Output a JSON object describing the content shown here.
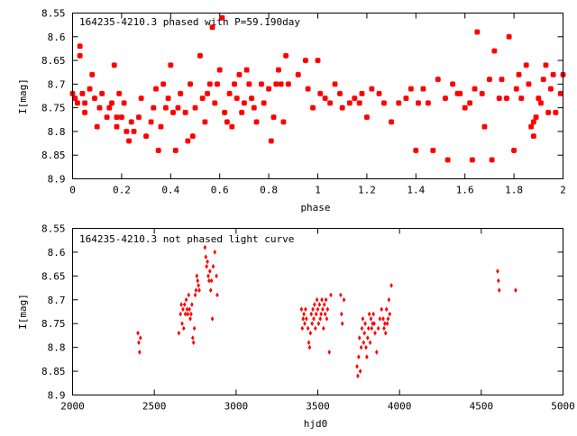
{
  "chart_data": [
    {
      "type": "scatter",
      "title": "164235-4210.3 phased with P=59.190day",
      "xlabel": "phase",
      "ylabel": "I[mag]",
      "xlim": [
        0,
        2
      ],
      "ylim": [
        8.55,
        8.9
      ],
      "y_inverted": true,
      "grid": false,
      "marker_color": "#ff0000",
      "x_ticks": [
        "0",
        "0.2",
        "0.4",
        "0.6",
        "0.8",
        "1",
        "1.2",
        "1.4",
        "1.6",
        "1.8",
        "2"
      ],
      "x_tick_values": [
        0,
        0.2,
        0.4,
        0.6,
        0.8,
        1.0,
        1.2,
        1.4,
        1.6,
        1.8,
        2.0
      ],
      "y_ticks": [
        "8.55",
        "8.6",
        "8.65",
        "8.7",
        "8.75",
        "8.8",
        "8.85",
        "8.9"
      ],
      "y_tick_values": [
        8.55,
        8.6,
        8.65,
        8.7,
        8.75,
        8.8,
        8.85,
        8.9
      ],
      "points": [
        [
          0.0,
          8.72
        ],
        [
          0.01,
          8.73
        ],
        [
          0.02,
          8.74
        ],
        [
          0.03,
          8.62
        ],
        [
          0.03,
          8.64
        ],
        [
          0.04,
          8.72
        ],
        [
          0.05,
          8.74
        ],
        [
          0.05,
          8.76
        ],
        [
          0.07,
          8.71
        ],
        [
          0.08,
          8.68
        ],
        [
          0.09,
          8.73
        ],
        [
          0.1,
          8.79
        ],
        [
          0.11,
          8.75
        ],
        [
          0.12,
          8.72
        ],
        [
          0.14,
          8.77
        ],
        [
          0.15,
          8.75
        ],
        [
          0.16,
          8.74
        ],
        [
          0.17,
          8.66
        ],
        [
          0.18,
          8.77
        ],
        [
          0.18,
          8.79
        ],
        [
          0.19,
          8.72
        ],
        [
          0.2,
          8.77
        ],
        [
          0.21,
          8.74
        ],
        [
          0.22,
          8.8
        ],
        [
          0.23,
          8.82
        ],
        [
          0.24,
          8.78
        ],
        [
          0.25,
          8.8
        ],
        [
          0.27,
          8.77
        ],
        [
          0.28,
          8.73
        ],
        [
          0.3,
          8.81
        ],
        [
          0.32,
          8.78
        ],
        [
          0.33,
          8.75
        ],
        [
          0.34,
          8.71
        ],
        [
          0.35,
          8.84
        ],
        [
          0.36,
          8.79
        ],
        [
          0.37,
          8.7
        ],
        [
          0.38,
          8.75
        ],
        [
          0.39,
          8.73
        ],
        [
          0.4,
          8.66
        ],
        [
          0.41,
          8.76
        ],
        [
          0.42,
          8.84
        ],
        [
          0.43,
          8.75
        ],
        [
          0.44,
          8.72
        ],
        [
          0.46,
          8.76
        ],
        [
          0.47,
          8.82
        ],
        [
          0.48,
          8.7
        ],
        [
          0.49,
          8.81
        ],
        [
          0.5,
          8.75
        ],
        [
          0.52,
          8.64
        ],
        [
          0.53,
          8.73
        ],
        [
          0.54,
          8.78
        ],
        [
          0.55,
          8.72
        ],
        [
          0.56,
          8.7
        ],
        [
          0.57,
          8.58
        ],
        [
          0.58,
          8.74
        ],
        [
          0.59,
          8.7
        ],
        [
          0.6,
          8.67
        ],
        [
          0.61,
          8.56
        ],
        [
          0.62,
          8.76
        ],
        [
          0.63,
          8.78
        ],
        [
          0.64,
          8.72
        ],
        [
          0.65,
          8.79
        ],
        [
          0.66,
          8.7
        ],
        [
          0.67,
          8.73
        ],
        [
          0.68,
          8.68
        ],
        [
          0.69,
          8.76
        ],
        [
          0.7,
          8.74
        ],
        [
          0.71,
          8.67
        ],
        [
          0.72,
          8.7
        ],
        [
          0.73,
          8.73
        ],
        [
          0.74,
          8.75
        ],
        [
          0.75,
          8.78
        ],
        [
          0.77,
          8.7
        ],
        [
          0.78,
          8.74
        ],
        [
          0.8,
          8.71
        ],
        [
          0.81,
          8.82
        ],
        [
          0.82,
          8.77
        ],
        [
          0.83,
          8.7
        ],
        [
          0.84,
          8.67
        ],
        [
          0.85,
          8.7
        ],
        [
          0.86,
          8.78
        ],
        [
          0.87,
          8.64
        ],
        [
          0.88,
          8.7
        ],
        [
          0.92,
          8.68
        ],
        [
          0.95,
          8.65
        ],
        [
          0.96,
          8.71
        ],
        [
          0.98,
          8.75
        ],
        [
          1.0,
          8.65
        ],
        [
          1.01,
          8.72
        ],
        [
          1.03,
          8.73
        ],
        [
          1.05,
          8.74
        ],
        [
          1.07,
          8.7
        ],
        [
          1.09,
          8.72
        ],
        [
          1.1,
          8.75
        ],
        [
          1.13,
          8.74
        ],
        [
          1.15,
          8.73
        ],
        [
          1.17,
          8.74
        ],
        [
          1.18,
          8.72
        ],
        [
          1.2,
          8.77
        ],
        [
          1.22,
          8.71
        ],
        [
          1.25,
          8.72
        ],
        [
          1.27,
          8.74
        ],
        [
          1.3,
          8.78
        ],
        [
          1.33,
          8.74
        ],
        [
          1.36,
          8.73
        ],
        [
          1.38,
          8.71
        ],
        [
          1.4,
          8.84
        ],
        [
          1.41,
          8.74
        ],
        [
          1.43,
          8.71
        ],
        [
          1.45,
          8.74
        ],
        [
          1.47,
          8.84
        ],
        [
          1.49,
          8.69
        ],
        [
          1.52,
          8.73
        ],
        [
          1.53,
          8.86
        ],
        [
          1.55,
          8.7
        ],
        [
          1.57,
          8.72
        ],
        [
          1.58,
          8.72
        ],
        [
          1.6,
          8.75
        ],
        [
          1.62,
          8.74
        ],
        [
          1.63,
          8.86
        ],
        [
          1.64,
          8.71
        ],
        [
          1.65,
          8.59
        ],
        [
          1.67,
          8.72
        ],
        [
          1.68,
          8.79
        ],
        [
          1.7,
          8.69
        ],
        [
          1.71,
          8.86
        ],
        [
          1.72,
          8.63
        ],
        [
          1.74,
          8.73
        ],
        [
          1.75,
          8.69
        ],
        [
          1.77,
          8.73
        ],
        [
          1.78,
          8.6
        ],
        [
          1.8,
          8.84
        ],
        [
          1.81,
          8.71
        ],
        [
          1.82,
          8.68
        ],
        [
          1.83,
          8.73
        ],
        [
          1.85,
          8.66
        ],
        [
          1.86,
          8.7
        ],
        [
          1.87,
          8.79
        ],
        [
          1.88,
          8.81
        ],
        [
          1.88,
          8.78
        ],
        [
          1.89,
          8.77
        ],
        [
          1.9,
          8.73
        ],
        [
          1.91,
          8.74
        ],
        [
          1.92,
          8.69
        ],
        [
          1.93,
          8.66
        ],
        [
          1.94,
          8.76
        ],
        [
          1.95,
          8.71
        ],
        [
          1.96,
          8.68
        ],
        [
          1.97,
          8.76
        ],
        [
          1.99,
          8.72
        ],
        [
          2.0,
          8.68
        ]
      ]
    },
    {
      "type": "scatter",
      "title": "164235-4210.3 not phased light curve",
      "xlabel": "hjd0",
      "ylabel": "I[mag]",
      "xlim": [
        2000,
        5000
      ],
      "ylim": [
        8.55,
        8.9
      ],
      "y_inverted": true,
      "grid": false,
      "marker_color": "#ff0000",
      "x_ticks": [
        "2000",
        "2500",
        "3000",
        "3500",
        "4000",
        "4500",
        "5000"
      ],
      "x_tick_values": [
        2000,
        2500,
        3000,
        3500,
        4000,
        4500,
        5000
      ],
      "y_ticks": [
        "8.55",
        "8.6",
        "8.65",
        "8.7",
        "8.75",
        "8.8",
        "8.85",
        "8.9"
      ],
      "y_tick_values": [
        8.55,
        8.6,
        8.65,
        8.7,
        8.75,
        8.8,
        8.85,
        8.9
      ],
      "points": [
        [
          2400,
          8.77
        ],
        [
          2405,
          8.79
        ],
        [
          2410,
          8.81
        ],
        [
          2415,
          8.78
        ],
        [
          2650,
          8.77
        ],
        [
          2660,
          8.73
        ],
        [
          2665,
          8.71
        ],
        [
          2670,
          8.75
        ],
        [
          2675,
          8.72
        ],
        [
          2680,
          8.76
        ],
        [
          2685,
          8.71
        ],
        [
          2690,
          8.73
        ],
        [
          2695,
          8.7
        ],
        [
          2700,
          8.72
        ],
        [
          2705,
          8.73
        ],
        [
          2710,
          8.69
        ],
        [
          2715,
          8.72
        ],
        [
          2720,
          8.74
        ],
        [
          2725,
          8.73
        ],
        [
          2730,
          8.71
        ],
        [
          2735,
          8.78
        ],
        [
          2740,
          8.79
        ],
        [
          2745,
          8.76
        ],
        [
          2750,
          8.69
        ],
        [
          2755,
          8.68
        ],
        [
          2760,
          8.65
        ],
        [
          2765,
          8.66
        ],
        [
          2770,
          8.67
        ],
        [
          2775,
          8.68
        ],
        [
          2810,
          8.59
        ],
        [
          2815,
          8.61
        ],
        [
          2820,
          8.63
        ],
        [
          2825,
          8.62
        ],
        [
          2830,
          8.65
        ],
        [
          2835,
          8.66
        ],
        [
          2840,
          8.64
        ],
        [
          2845,
          8.68
        ],
        [
          2850,
          8.66
        ],
        [
          2855,
          8.74
        ],
        [
          2860,
          8.63
        ],
        [
          2870,
          8.6
        ],
        [
          2880,
          8.65
        ],
        [
          2885,
          8.69
        ],
        [
          3400,
          8.72
        ],
        [
          3405,
          8.76
        ],
        [
          3410,
          8.74
        ],
        [
          3415,
          8.73
        ],
        [
          3420,
          8.75
        ],
        [
          3425,
          8.72
        ],
        [
          3430,
          8.74
        ],
        [
          3440,
          8.76
        ],
        [
          3445,
          8.79
        ],
        [
          3450,
          8.8
        ],
        [
          3455,
          8.77
        ],
        [
          3460,
          8.73
        ],
        [
          3465,
          8.75
        ],
        [
          3470,
          8.72
        ],
        [
          3475,
          8.74
        ],
        [
          3480,
          8.71
        ],
        [
          3485,
          8.76
        ],
        [
          3490,
          8.73
        ],
        [
          3495,
          8.7
        ],
        [
          3500,
          8.72
        ],
        [
          3505,
          8.75
        ],
        [
          3510,
          8.71
        ],
        [
          3515,
          8.74
        ],
        [
          3520,
          8.73
        ],
        [
          3525,
          8.7
        ],
        [
          3530,
          8.72
        ],
        [
          3535,
          8.76
        ],
        [
          3540,
          8.71
        ],
        [
          3545,
          8.73
        ],
        [
          3550,
          8.7
        ],
        [
          3555,
          8.74
        ],
        [
          3560,
          8.72
        ],
        [
          3570,
          8.81
        ],
        [
          3580,
          8.69
        ],
        [
          3640,
          8.69
        ],
        [
          3645,
          8.73
        ],
        [
          3650,
          8.75
        ],
        [
          3660,
          8.7
        ],
        [
          3740,
          8.84
        ],
        [
          3745,
          8.86
        ],
        [
          3750,
          8.82
        ],
        [
          3755,
          8.78
        ],
        [
          3760,
          8.85
        ],
        [
          3765,
          8.8
        ],
        [
          3770,
          8.76
        ],
        [
          3775,
          8.74
        ],
        [
          3780,
          8.79
        ],
        [
          3785,
          8.77
        ],
        [
          3790,
          8.75
        ],
        [
          3795,
          8.8
        ],
        [
          3800,
          8.82
        ],
        [
          3805,
          8.78
        ],
        [
          3810,
          8.76
        ],
        [
          3815,
          8.73
        ],
        [
          3820,
          8.79
        ],
        [
          3825,
          8.74
        ],
        [
          3830,
          8.76
        ],
        [
          3835,
          8.75
        ],
        [
          3840,
          8.73
        ],
        [
          3845,
          8.75
        ],
        [
          3850,
          8.77
        ],
        [
          3860,
          8.81
        ],
        [
          3870,
          8.76
        ],
        [
          3880,
          8.74
        ],
        [
          3890,
          8.72
        ],
        [
          3900,
          8.74
        ],
        [
          3905,
          8.76
        ],
        [
          3910,
          8.75
        ],
        [
          3915,
          8.77
        ],
        [
          3920,
          8.72
        ],
        [
          3925,
          8.75
        ],
        [
          3930,
          8.74
        ],
        [
          3935,
          8.7
        ],
        [
          3940,
          8.73
        ],
        [
          3950,
          8.67
        ],
        [
          4600,
          8.64
        ],
        [
          4605,
          8.66
        ],
        [
          4610,
          8.68
        ],
        [
          4710,
          8.68
        ]
      ]
    }
  ]
}
